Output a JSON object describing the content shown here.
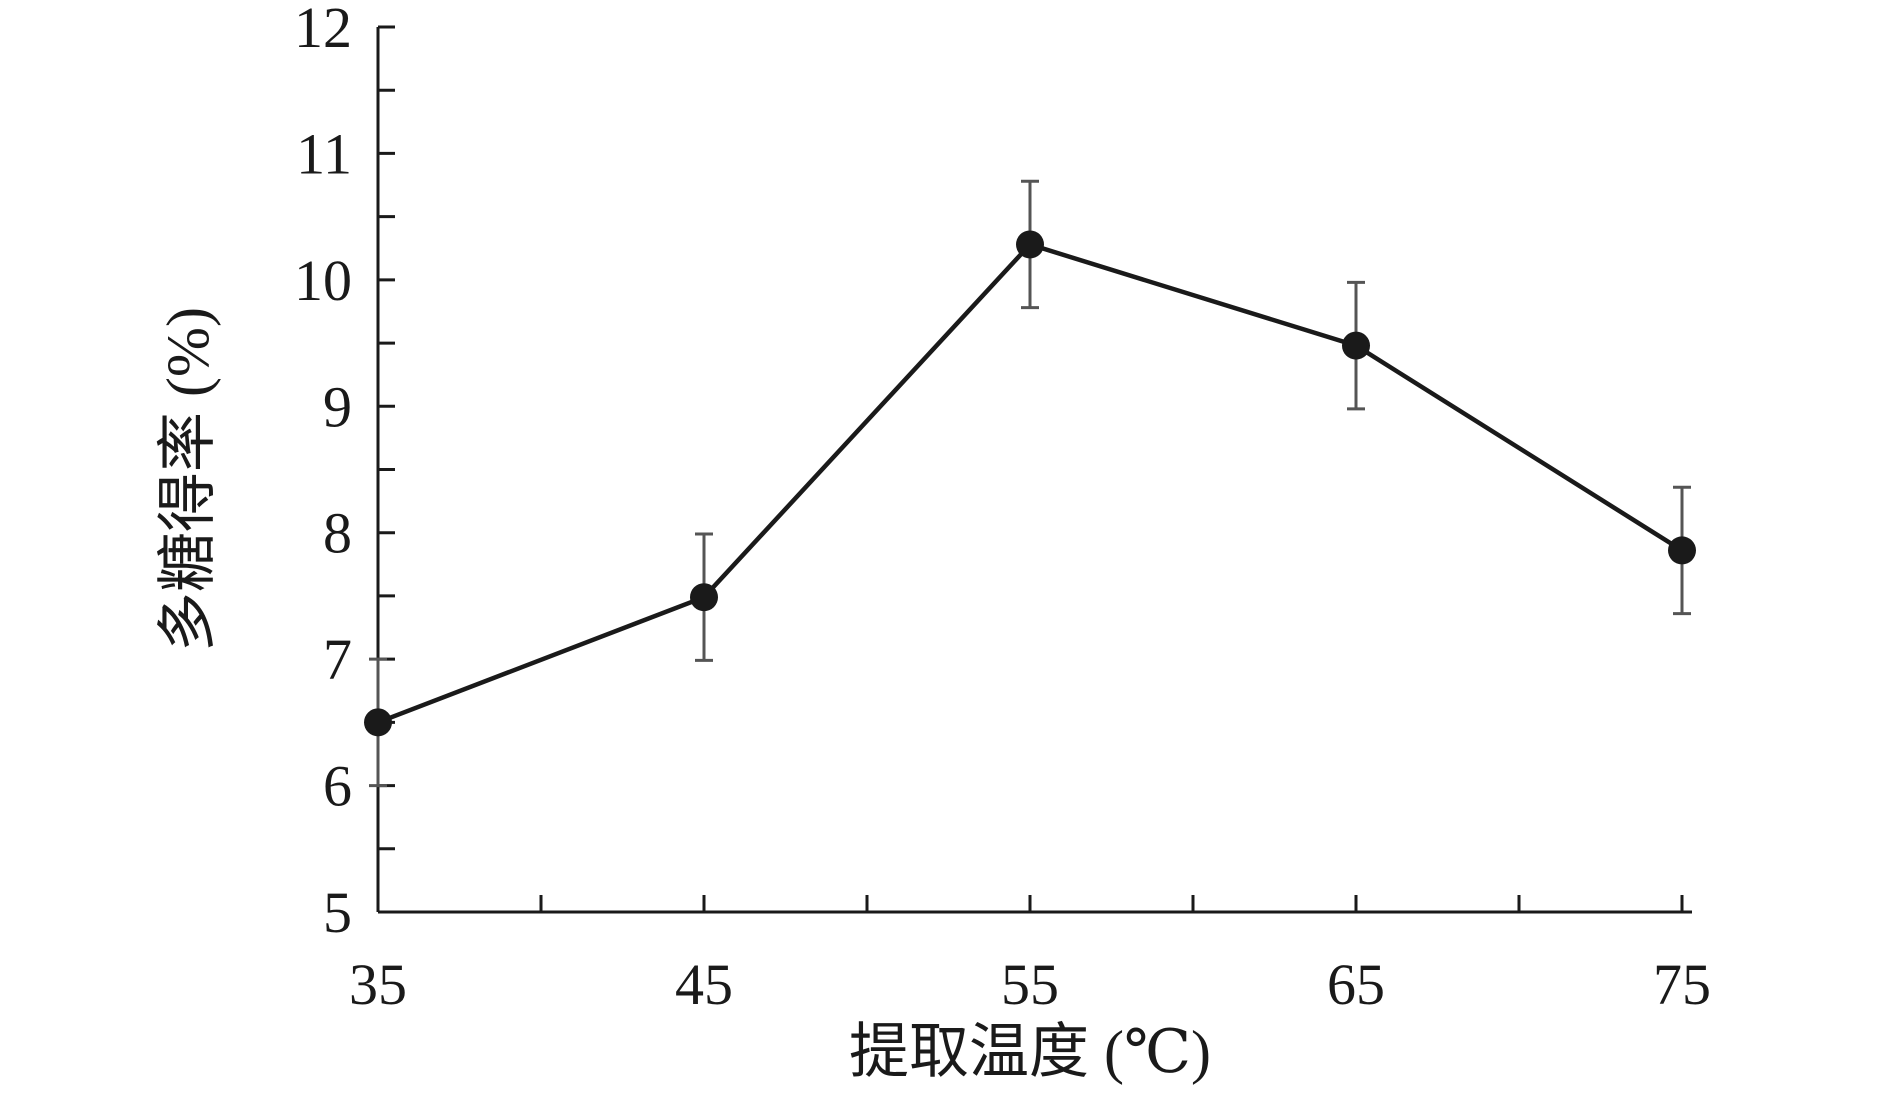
{
  "chart_data": {
    "type": "line",
    "title": "",
    "xlabel": "提取温度 (℃)",
    "ylabel": "多糖得率 (%)",
    "x": [
      35,
      45,
      55,
      65,
      75
    ],
    "x_tick_labels": [
      "35",
      "45",
      "55",
      "65",
      "75"
    ],
    "xlim": [
      35,
      75
    ],
    "ylim": [
      5,
      12
    ],
    "y_ticks": [
      5,
      6,
      7,
      8,
      9,
      10,
      11,
      12
    ],
    "y_tick_labels": [
      "5",
      "6",
      "7",
      "8",
      "9",
      "10",
      "11",
      "12"
    ],
    "series": [
      {
        "values": [
          6.5,
          7.49,
          10.28,
          9.48,
          7.86
        ],
        "error": [
          0.5,
          0.5,
          0.5,
          0.5,
          0.5
        ]
      }
    ],
    "grid": false,
    "legend": "none",
    "colors": {
      "line": "#1a1a1a",
      "marker": "#1a1a1a",
      "error_bar": "#555555",
      "axis": "#1a1a1a"
    }
  }
}
